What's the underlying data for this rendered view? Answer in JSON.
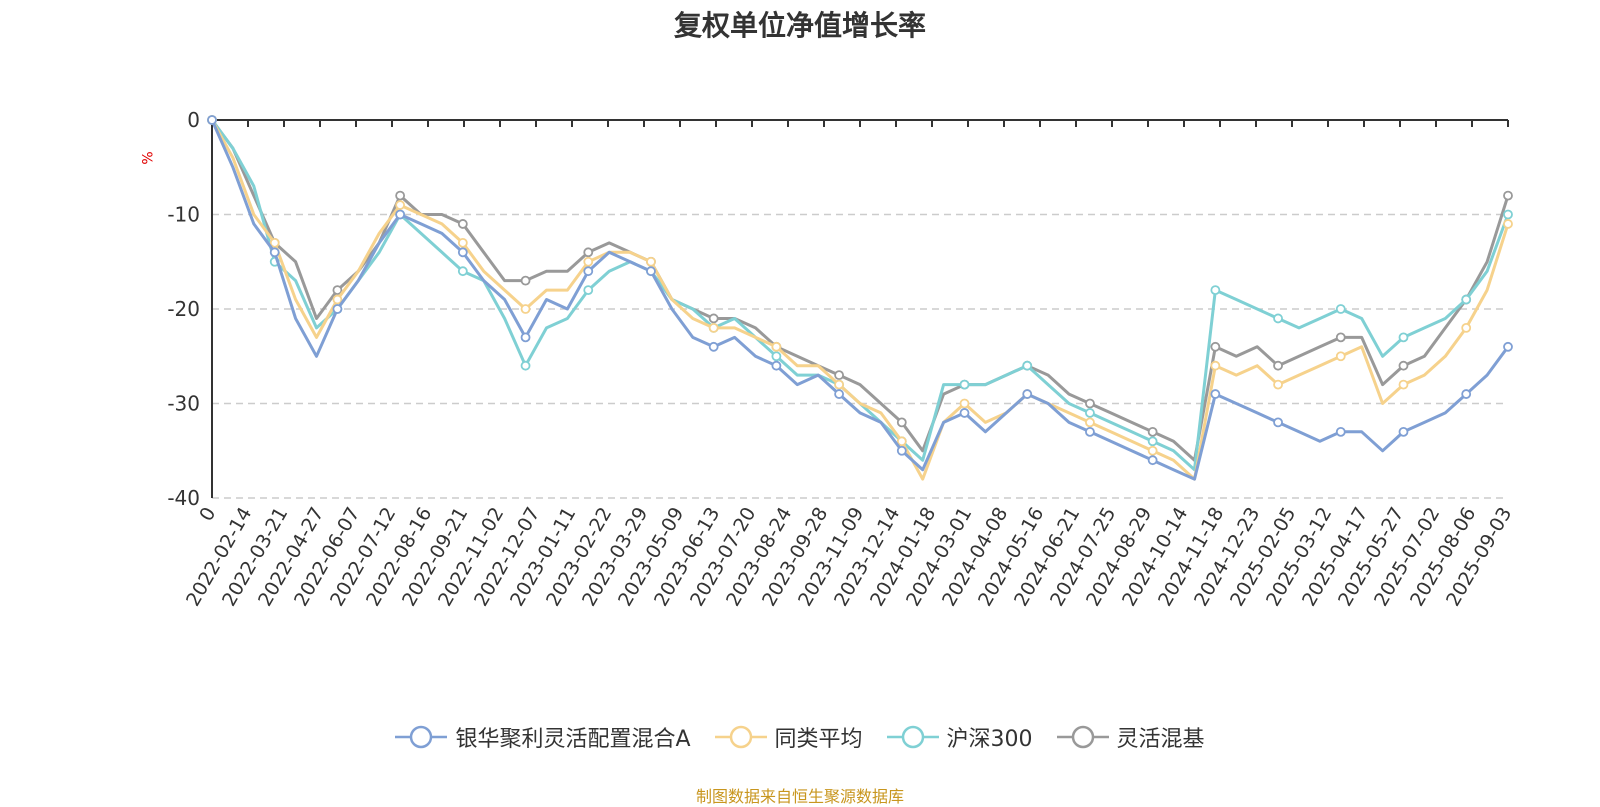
{
  "source_note": "制图数据来自恒生聚源数据库",
  "chart_data": {
    "type": "line",
    "title": "复权单位净值增长率",
    "ylabel": "%",
    "ylim": [
      -40,
      0
    ],
    "y_ticks": [
      0,
      -10,
      -20,
      -30,
      -40
    ],
    "grid": true,
    "legend_position": "bottom",
    "x_tick_labels": [
      "0",
      "2022-02-14",
      "2022-03-21",
      "2022-04-27",
      "2022-06-07",
      "2022-07-12",
      "2022-08-16",
      "2022-09-21",
      "2022-11-02",
      "2022-12-07",
      "2023-01-11",
      "2023-02-22",
      "2023-03-29",
      "2023-05-09",
      "2023-06-13",
      "2023-07-20",
      "2023-08-24",
      "2023-09-28",
      "2023-11-09",
      "2023-12-14",
      "2024-01-18",
      "2024-03-01",
      "2024-04-08",
      "2024-05-16",
      "2024-06-21",
      "2024-07-25",
      "2024-08-29",
      "2024-10-14",
      "2024-11-18",
      "2024-12-23",
      "2025-02-05",
      "2025-03-12",
      "2025-04-17",
      "2025-05-27",
      "2025-07-02",
      "2025-08-06",
      "2025-09-03"
    ],
    "series": [
      {
        "name": "银华聚利灵活配置混合A",
        "color": "#7f9fd4",
        "values": [
          0,
          -5,
          -11,
          -14,
          -21,
          -25,
          -20,
          -17,
          -13,
          -10,
          -11,
          -12,
          -14,
          -17,
          -19,
          -23,
          -19,
          -20,
          -16,
          -14,
          -15,
          -16,
          -20,
          -23,
          -24,
          -23,
          -25,
          -26,
          -28,
          -27,
          -29,
          -31,
          -32,
          -35,
          -37,
          -32,
          -31,
          -33,
          -31,
          -29,
          -30,
          -32,
          -33,
          -34,
          -35,
          -36,
          -37,
          -38,
          -29,
          -30,
          -31,
          -32,
          -33,
          -34,
          -33,
          -33,
          -35,
          -33,
          -32,
          -31,
          -29,
          -27,
          -24
        ]
      },
      {
        "name": "同类平均",
        "color": "#f6d28c",
        "values": [
          0,
          -4,
          -10,
          -13,
          -19,
          -23,
          -19,
          -16,
          -12,
          -9,
          -10,
          -11,
          -13,
          -16,
          -18,
          -20,
          -18,
          -18,
          -15,
          -14,
          -14,
          -15,
          -19,
          -21,
          -22,
          -22,
          -23,
          -24,
          -26,
          -26,
          -28,
          -30,
          -31,
          -34,
          -38,
          -32,
          -30,
          -32,
          -31,
          -29,
          -30,
          -31,
          -32,
          -33,
          -34,
          -35,
          -36,
          -38,
          -26,
          -27,
          -26,
          -28,
          -27,
          -26,
          -25,
          -24,
          -30,
          -28,
          -27,
          -25,
          -22,
          -18,
          -11
        ]
      },
      {
        "name": "沪深300",
        "color": "#7fd0d4",
        "values": [
          0,
          -3,
          -7,
          -15,
          -17,
          -22,
          -20,
          -17,
          -14,
          -10,
          -12,
          -14,
          -16,
          -17,
          -21,
          -26,
          -22,
          -21,
          -18,
          -16,
          -15,
          -16,
          -19,
          -20,
          -22,
          -21,
          -23,
          -25,
          -27,
          -27,
          -28,
          -30,
          -32,
          -34,
          -36,
          -28,
          -28,
          -28,
          -27,
          -26,
          -28,
          -30,
          -31,
          -32,
          -33,
          -34,
          -35,
          -37,
          -18,
          -19,
          -20,
          -21,
          -22,
          -21,
          -20,
          -21,
          -25,
          -23,
          -22,
          -21,
          -19,
          -16,
          -10
        ]
      },
      {
        "name": "灵活混基",
        "color": "#999999",
        "values": [
          0,
          -3,
          -8,
          -13,
          -15,
          -21,
          -18,
          -16,
          -13,
          -8,
          -10,
          -10,
          -11,
          -14,
          -17,
          -17,
          -16,
          -16,
          -14,
          -13,
          -14,
          -15,
          -19,
          -20,
          -21,
          -21,
          -22,
          -24,
          -25,
          -26,
          -27,
          -28,
          -30,
          -32,
          -35,
          -29,
          -28,
          -28,
          -27,
          -26,
          -27,
          -29,
          -30,
          -31,
          -32,
          -33,
          -34,
          -36,
          -24,
          -25,
          -24,
          -26,
          -25,
          -24,
          -23,
          -23,
          -28,
          -26,
          -25,
          -22,
          -19,
          -15,
          -8
        ]
      }
    ]
  }
}
